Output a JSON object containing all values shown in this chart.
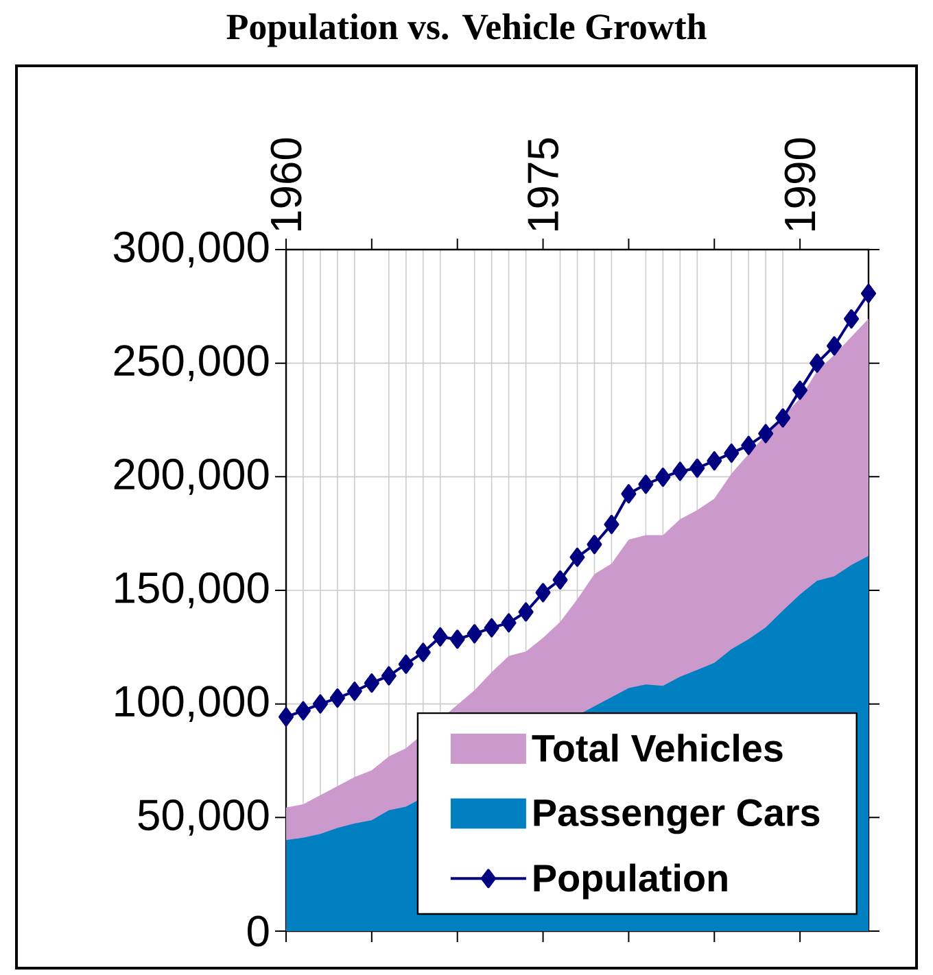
{
  "chart_data": {
    "type": "area",
    "title": "Population vs. Vehicle Growth",
    "x": [
      1960,
      1961,
      1962,
      1963,
      1964,
      1965,
      1966,
      1967,
      1968,
      1969,
      1970,
      1971,
      1972,
      1973,
      1974,
      1975,
      1976,
      1977,
      1978,
      1979,
      1980,
      1981,
      1982,
      1983,
      1984,
      1985,
      1986,
      1987,
      1988,
      1989,
      1990,
      1991,
      1992,
      1993,
      1994
    ],
    "series": [
      {
        "name": "Total Vehicles",
        "color": "#cc99cc",
        "values": [
          54400,
          55800,
          59800,
          63800,
          67800,
          70800,
          76900,
          80500,
          null,
          null,
          null,
          106000,
          114000,
          121100,
          123100,
          129100,
          136100,
          146100,
          157200,
          161800,
          172300,
          174300,
          174300,
          181300,
          185300,
          190400,
          201400,
          210000,
          218400,
          226500,
          234500,
          246600,
          253600,
          261600,
          269600
        ]
      },
      {
        "name": "Passenger Cars",
        "color": "#0080c0",
        "values": [
          40100,
          41100,
          42800,
          45400,
          47400,
          48800,
          53200,
          54800,
          null,
          null,
          null,
          null,
          null,
          null,
          null,
          null,
          null,
          null,
          null,
          null,
          107000,
          108600,
          108000,
          112000,
          115000,
          118100,
          124100,
          128500,
          133700,
          141100,
          148200,
          154200,
          156200,
          161200,
          165200
        ]
      },
      {
        "name": "Population",
        "type": "line",
        "marker": "diamond",
        "line_style": "solid",
        "color": "#000080",
        "values": [
          94300,
          97000,
          100000,
          102600,
          105600,
          109200,
          112400,
          117500,
          122700,
          129500,
          128500,
          130900,
          133500,
          135700,
          140500,
          149000,
          154600,
          164600,
          170200,
          179000,
          192500,
          196700,
          199800,
          202400,
          203800,
          207000,
          210400,
          213800,
          219000,
          225900,
          238100,
          250000,
          257600,
          269500,
          280700
        ]
      }
    ],
    "xlim": [
      1960,
      1994
    ],
    "xticks": [
      1960,
      {
        "value": 1965,
        "label": null
      },
      {
        "value": 1970,
        "label": null
      },
      1975,
      {
        "value": 1980,
        "label": null
      },
      {
        "value": 1985,
        "label": null
      },
      1990
    ],
    "ylim": [
      0,
      300000
    ],
    "yticks": [
      0,
      {
        "value": 50000,
        "label": "50,000"
      },
      {
        "value": 100000,
        "label": "100,000"
      },
      {
        "value": 150000,
        "label": "150,000"
      },
      {
        "value": 200000,
        "label": "200,000"
      },
      {
        "value": 250000,
        "label": "250,000"
      },
      {
        "value": 300000,
        "label": "300,000"
      }
    ],
    "grid": true,
    "legend": "bottom right"
  }
}
